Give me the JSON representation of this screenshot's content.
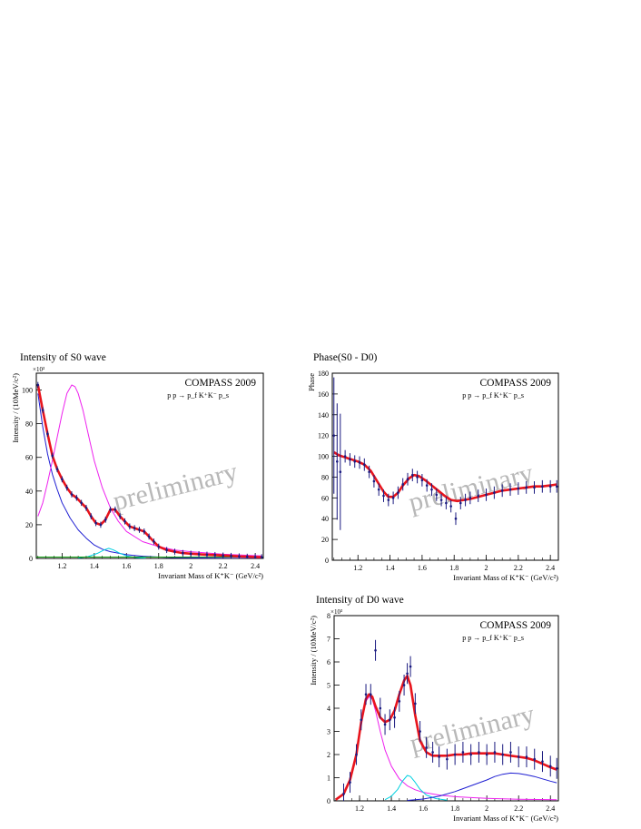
{
  "chart_data": [
    {
      "type": "line",
      "title": "Intensity of S0 wave",
      "experiment": "COMPASS 2009",
      "reaction": "p p → p_f K⁺K⁻ p_s",
      "watermark": "preliminary",
      "xlabel": "Invariant Mass of K⁺K⁻ (GeV/c²)",
      "ylabel": "Intensity / (10MeV/c²)",
      "y_multiplier": "×10³",
      "xlim": [
        1.04,
        2.45
      ],
      "ylim": [
        0,
        110
      ],
      "xticks": [
        "1.2",
        "1.4",
        "1.6",
        "1.8",
        "2",
        "2.2",
        "2.4"
      ],
      "yticks": [
        "0",
        "20",
        "40",
        "60",
        "80",
        "100"
      ],
      "series": [
        {
          "role": "data points",
          "color": "#1a1a80",
          "x": [
            1.05,
            1.08,
            1.11,
            1.14,
            1.17,
            1.2,
            1.23,
            1.26,
            1.29,
            1.32,
            1.35,
            1.38,
            1.41,
            1.44,
            1.47,
            1.5,
            1.53,
            1.56,
            1.59,
            1.62,
            1.65,
            1.68,
            1.71,
            1.74,
            1.77,
            1.8,
            1.85,
            1.9,
            1.95,
            2.0,
            2.05,
            2.1,
            2.15,
            2.2,
            2.25,
            2.3,
            2.35,
            2.4,
            2.44
          ],
          "y": [
            103,
            88,
            74,
            61,
            53,
            47,
            42,
            38,
            36,
            33,
            30,
            25,
            21,
            20,
            23,
            29,
            29,
            25,
            22,
            19,
            18,
            17,
            16,
            13,
            10,
            7,
            5,
            4,
            3.2,
            2.8,
            2.5,
            2.2,
            2.0,
            1.7,
            1.5,
            1.2,
            1.0,
            0.8,
            0.7
          ]
        },
        {
          "role": "total fit",
          "color": "#e8141c",
          "x": [
            1.05,
            1.08,
            1.11,
            1.14,
            1.17,
            1.2,
            1.23,
            1.26,
            1.29,
            1.32,
            1.35,
            1.38,
            1.41,
            1.44,
            1.47,
            1.5,
            1.53,
            1.56,
            1.59,
            1.62,
            1.65,
            1.68,
            1.71,
            1.74,
            1.77,
            1.8,
            1.85,
            1.9,
            1.95,
            2.0,
            2.05,
            2.1,
            2.15,
            2.2,
            2.25,
            2.3,
            2.35,
            2.4,
            2.44
          ],
          "y": [
            103,
            88,
            74,
            61,
            53,
            47,
            42,
            38,
            36,
            33,
            30,
            25,
            21,
            20,
            23,
            29,
            29,
            25,
            22,
            19,
            18,
            17,
            16,
            13,
            10,
            7,
            5,
            4,
            3.2,
            2.8,
            2.5,
            2.2,
            2.0,
            1.7,
            1.5,
            1.2,
            1.0,
            0.8,
            0.7
          ]
        },
        {
          "role": "component",
          "color": "#1e1ed2",
          "x": [
            1.05,
            1.08,
            1.11,
            1.14,
            1.17,
            1.2,
            1.25,
            1.3,
            1.35,
            1.4,
            1.45,
            1.5,
            1.6,
            1.7,
            1.8,
            1.9,
            2.0,
            2.2,
            2.44
          ],
          "y": [
            98,
            78,
            62,
            50,
            41,
            33,
            24,
            17,
            12,
            8,
            5.5,
            4,
            2.2,
            1.3,
            0.8,
            0.5,
            0.3,
            0.1,
            0.05
          ]
        },
        {
          "role": "component",
          "color": "#ee22ee",
          "x": [
            1.05,
            1.08,
            1.11,
            1.14,
            1.17,
            1.2,
            1.23,
            1.26,
            1.28,
            1.3,
            1.33,
            1.36,
            1.4,
            1.45,
            1.5,
            1.55,
            1.6,
            1.7,
            1.8,
            1.9,
            2.0,
            2.2,
            2.44
          ],
          "y": [
            25,
            33,
            45,
            58,
            72,
            86,
            98,
            103,
            102,
            98,
            88,
            75,
            58,
            42,
            30,
            22,
            16,
            10,
            7,
            5,
            4,
            2.5,
            1.5
          ]
        },
        {
          "role": "component",
          "color": "#00d0e0",
          "x": [
            1.3,
            1.36,
            1.42,
            1.46,
            1.49,
            1.52,
            1.56,
            1.6,
            1.66,
            1.72
          ],
          "y": [
            0.3,
            1,
            3,
            5,
            6,
            5,
            3,
            1.5,
            0.5,
            0.1
          ]
        },
        {
          "role": "component",
          "color": "#10a010",
          "x": [
            1.04,
            1.4,
            1.8,
            2.44
          ],
          "y": [
            0.8,
            0.8,
            0.8,
            0.8
          ]
        }
      ]
    },
    {
      "type": "line",
      "title": "Phase(S0 - D0)",
      "experiment": "COMPASS 2009",
      "reaction": "p p → p_f K⁺K⁻ p_s",
      "watermark": "preliminary",
      "xlabel": "Invariant Mass of K⁺K⁻ (GeV/c²)",
      "ylabel": "Phase",
      "xlim": [
        1.04,
        2.45
      ],
      "ylim": [
        0,
        180
      ],
      "xticks": [
        "1.2",
        "1.4",
        "1.6",
        "1.8",
        "2",
        "2.2",
        "2.4"
      ],
      "yticks": [
        "0",
        "20",
        "40",
        "60",
        "80",
        "100",
        "120",
        "140",
        "160",
        "180"
      ],
      "series": [
        {
          "role": "data points",
          "color": "#1a1a80",
          "x": [
            1.05,
            1.07,
            1.09,
            1.12,
            1.15,
            1.18,
            1.21,
            1.24,
            1.27,
            1.3,
            1.33,
            1.36,
            1.39,
            1.42,
            1.45,
            1.48,
            1.51,
            1.54,
            1.57,
            1.6,
            1.63,
            1.66,
            1.69,
            1.72,
            1.75,
            1.78,
            1.81,
            1.84,
            1.87,
            1.9,
            1.95,
            2.0,
            2.05,
            2.1,
            2.15,
            2.2,
            2.25,
            2.3,
            2.35,
            2.4,
            2.44
          ],
          "y": [
            120,
            95,
            85,
            100,
            97,
            95,
            94,
            92,
            85,
            76,
            68,
            62,
            58,
            60,
            65,
            73,
            78,
            82,
            80,
            77,
            72,
            68,
            63,
            58,
            55,
            52,
            40,
            55,
            58,
            60,
            62,
            63,
            65,
            67,
            68,
            69,
            70,
            70,
            71,
            71,
            71
          ]
        },
        {
          "role": "fit",
          "color": "#e8141c",
          "x": [
            1.05,
            1.08,
            1.12,
            1.16,
            1.2,
            1.24,
            1.28,
            1.32,
            1.36,
            1.39,
            1.42,
            1.45,
            1.48,
            1.52,
            1.55,
            1.58,
            1.62,
            1.66,
            1.7,
            1.74,
            1.78,
            1.82,
            1.86,
            1.9,
            1.95,
            2.0,
            2.05,
            2.1,
            2.15,
            2.2,
            2.25,
            2.3,
            2.35,
            2.4,
            2.44
          ],
          "y": [
            104,
            101,
            99,
            97,
            95,
            92,
            86,
            76,
            66,
            61,
            61,
            65,
            72,
            79,
            82,
            81,
            77,
            72,
            67,
            62,
            58,
            57,
            58,
            59,
            61,
            63,
            65,
            67,
            68,
            69,
            70,
            71,
            71,
            72,
            73
          ]
        }
      ]
    },
    {
      "type": "line",
      "title": "Intensity of D0 wave",
      "experiment": "COMPASS 2009",
      "reaction": "p p → p_f K⁺K⁻ p_s",
      "watermark": "preliminary",
      "xlabel": "Invariant Mass of K⁺K⁻ (GeV/c²)",
      "ylabel": "Intensity / (10MeV/c²)",
      "y_multiplier": "×10³",
      "xlim": [
        1.04,
        2.45
      ],
      "ylim": [
        0,
        8
      ],
      "xticks": [
        "1.2",
        "1.4",
        "1.6",
        "1.8",
        "2",
        "2.2",
        "2.4"
      ],
      "yticks": [
        "0",
        "1",
        "2",
        "3",
        "4",
        "5",
        "6",
        "7",
        "8"
      ],
      "series": [
        {
          "role": "data points",
          "color": "#1a1a80",
          "x": [
            1.1,
            1.14,
            1.18,
            1.21,
            1.24,
            1.27,
            1.3,
            1.33,
            1.36,
            1.39,
            1.42,
            1.45,
            1.48,
            1.5,
            1.52,
            1.55,
            1.58,
            1.62,
            1.66,
            1.7,
            1.75,
            1.8,
            1.85,
            1.9,
            1.95,
            2.0,
            2.05,
            2.1,
            2.15,
            2.2,
            2.25,
            2.3,
            2.35,
            2.4,
            2.44
          ],
          "y": [
            0.3,
            0.8,
            2.0,
            3.5,
            4.6,
            4.6,
            6.5,
            4.0,
            3.3,
            3.5,
            3.6,
            4.3,
            5.0,
            5.5,
            5.8,
            4.2,
            3.0,
            2.3,
            2.1,
            1.9,
            1.8,
            2.0,
            2.1,
            2.0,
            2.1,
            2.0,
            2.1,
            2.0,
            2.1,
            1.9,
            1.9,
            1.8,
            1.7,
            1.5,
            1.4
          ]
        },
        {
          "role": "total fit",
          "color": "#e8141c",
          "x": [
            1.05,
            1.1,
            1.14,
            1.18,
            1.21,
            1.24,
            1.26,
            1.28,
            1.3,
            1.33,
            1.36,
            1.39,
            1.42,
            1.45,
            1.48,
            1.5,
            1.52,
            1.55,
            1.58,
            1.62,
            1.66,
            1.7,
            1.75,
            1.8,
            1.85,
            1.9,
            1.95,
            2.0,
            2.05,
            2.1,
            2.15,
            2.2,
            2.25,
            2.3,
            2.35,
            2.4,
            2.44
          ],
          "y": [
            0.05,
            0.3,
            0.9,
            2.0,
            3.4,
            4.4,
            4.6,
            4.5,
            4.1,
            3.6,
            3.4,
            3.5,
            3.9,
            4.6,
            5.2,
            5.4,
            5.0,
            3.7,
            2.6,
            2.1,
            1.95,
            1.95,
            1.95,
            2.0,
            2.0,
            2.05,
            2.05,
            2.05,
            2.05,
            2.0,
            1.95,
            1.9,
            1.85,
            1.75,
            1.6,
            1.45,
            1.35
          ]
        },
        {
          "role": "component",
          "color": "#ee22ee",
          "x": [
            1.05,
            1.1,
            1.14,
            1.18,
            1.21,
            1.24,
            1.26,
            1.28,
            1.3,
            1.33,
            1.36,
            1.4,
            1.45,
            1.5,
            1.55,
            1.6,
            1.7,
            1.8,
            1.9,
            2.0,
            2.2,
            2.44
          ],
          "y": [
            0.05,
            0.3,
            0.9,
            2.0,
            3.3,
            4.3,
            4.5,
            4.4,
            3.9,
            3.0,
            2.2,
            1.5,
            0.95,
            0.65,
            0.48,
            0.37,
            0.25,
            0.18,
            0.14,
            0.11,
            0.07,
            0.05
          ]
        },
        {
          "role": "component",
          "color": "#00d0e0",
          "x": [
            1.36,
            1.4,
            1.44,
            1.47,
            1.5,
            1.52,
            1.55,
            1.58,
            1.62,
            1.68,
            1.75
          ],
          "y": [
            0.05,
            0.2,
            0.5,
            0.85,
            1.1,
            1.05,
            0.8,
            0.5,
            0.25,
            0.1,
            0.03
          ]
        },
        {
          "role": "component",
          "color": "#1e1ed2",
          "x": [
            1.5,
            1.6,
            1.7,
            1.8,
            1.9,
            2.0,
            2.05,
            2.1,
            2.15,
            2.2,
            2.25,
            2.3,
            2.35,
            2.4,
            2.44
          ],
          "y": [
            0.02,
            0.08,
            0.2,
            0.4,
            0.65,
            0.9,
            1.05,
            1.15,
            1.2,
            1.18,
            1.12,
            1.05,
            0.95,
            0.85,
            0.78
          ]
        }
      ]
    }
  ]
}
